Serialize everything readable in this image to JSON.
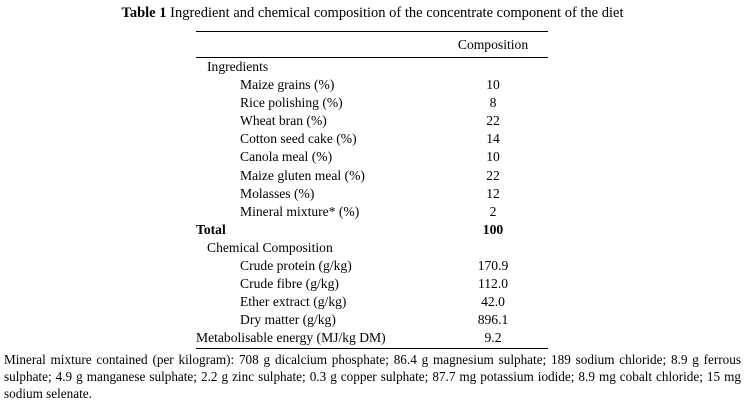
{
  "caption": {
    "label": "Table 1",
    "text": "Ingredient and chemical composition of the concentrate component of the diet"
  },
  "table": {
    "column_header": "Composition",
    "rows": [
      {
        "kind": "section",
        "label": "Ingredients",
        "value": ""
      },
      {
        "kind": "item",
        "label": "Maize grains (%)",
        "value": "10"
      },
      {
        "kind": "item",
        "label": "Rice polishing (%)",
        "value": "8"
      },
      {
        "kind": "item",
        "label": "Wheat bran (%)",
        "value": "22"
      },
      {
        "kind": "item",
        "label": "Cotton seed cake (%)",
        "value": "14"
      },
      {
        "kind": "item",
        "label": "Canola meal (%)",
        "value": "10"
      },
      {
        "kind": "item",
        "label": "Maize gluten meal (%)",
        "value": "22"
      },
      {
        "kind": "item",
        "label": "Molasses (%)",
        "value": "12"
      },
      {
        "kind": "item",
        "label": "Mineral mixture* (%)",
        "value": "2"
      },
      {
        "kind": "total",
        "label": "Total",
        "value": "100"
      },
      {
        "kind": "section",
        "label": "Chemical Composition",
        "value": ""
      },
      {
        "kind": "item",
        "label": "Crude protein (g/kg)",
        "value": "170.9"
      },
      {
        "kind": "item",
        "label": "Crude fibre (g/kg)",
        "value": "112.0"
      },
      {
        "kind": "item",
        "label": "Ether extract (g/kg)",
        "value": "42.0"
      },
      {
        "kind": "item",
        "label": "Dry matter (g/kg)",
        "value": "896.1"
      },
      {
        "kind": "top",
        "label": "Metabolisable energy (MJ/kg DM)",
        "value": "9.2"
      }
    ]
  },
  "footnote": "Mineral mixture contained (per kilogram): 708 g dicalcium phosphate; 86.4 g magnesium sulphate; 189 sodium chloride; 8.9 g ferrous sulphate; 4.9 g manganese sulphate; 2.2 g zinc sulphate; 0.3 g copper sulphate; 87.7 mg potassium iodide; 8.9 mg cobalt chloride; 15 mg sodium selenate."
}
